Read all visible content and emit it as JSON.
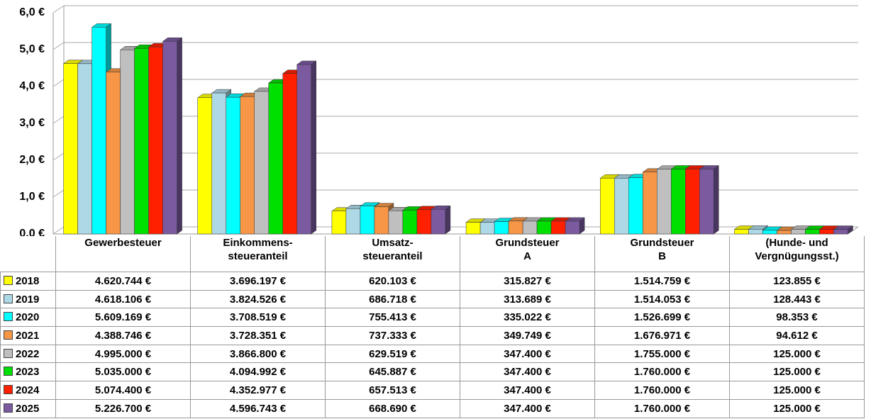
{
  "chart_data": {
    "type": "bar3d",
    "categories": [
      "Gewerbesteuer",
      "Einkommens-\nsteueranteil",
      "Umsatz-\nsteueranteil",
      "Grundsteuer\nA",
      "Grundsteuer\nB",
      "(Hunde- und\nVergnügungsst.)"
    ],
    "ylim": [
      0,
      6
    ],
    "yticks": [
      {
        "value": 0,
        "label": "0,0 €"
      },
      {
        "value": 1,
        "label": "1,0 €"
      },
      {
        "value": 2,
        "label": "2,0 €"
      },
      {
        "value": 3,
        "label": "3,0 €"
      },
      {
        "value": 4,
        "label": "4,0 €"
      },
      {
        "value": 5,
        "label": "5,0 €"
      },
      {
        "value": 6,
        "label": "6,0 €"
      }
    ],
    "grid": true,
    "series": [
      {
        "name": "2018",
        "color": "#ffff00",
        "values": [
          4.620744,
          3.696197,
          0.620103,
          0.315827,
          1.514759,
          0.123855
        ],
        "value_labels": [
          "4.620.744 €",
          "3.696.197 €",
          "620.103 €",
          "315.827 €",
          "1.514.759 €",
          "123.855 €"
        ]
      },
      {
        "name": "2019",
        "color": "#add8e6",
        "values": [
          4.618106,
          3.824526,
          0.686718,
          0.313689,
          1.514053,
          0.128443
        ],
        "value_labels": [
          "4.618.106 €",
          "3.824.526 €",
          "686.718 €",
          "313.689 €",
          "1.514.053 €",
          "128.443 €"
        ]
      },
      {
        "name": "2020",
        "color": "#00ffff",
        "values": [
          5.609169,
          3.708519,
          0.755413,
          0.335022,
          1.526699,
          0.098353
        ],
        "value_labels": [
          "5.609.169 €",
          "3.708.519 €",
          "755.413 €",
          "335.022 €",
          "1.526.699 €",
          "98.353 €"
        ]
      },
      {
        "name": "2021",
        "color": "#f79646",
        "values": [
          4.388746,
          3.728351,
          0.737333,
          0.349749,
          1.676971,
          0.094612
        ],
        "value_labels": [
          "4.388.746 €",
          "3.728.351 €",
          "737.333 €",
          "349.749 €",
          "1.676.971 €",
          "94.612 €"
        ]
      },
      {
        "name": "2022",
        "color": "#bfbfbf",
        "values": [
          4.995,
          3.8668,
          0.629519,
          0.3474,
          1.755,
          0.125
        ],
        "value_labels": [
          "4.995.000 €",
          "3.866.800 €",
          "629.519 €",
          "347.400 €",
          "1.755.000 €",
          "125.000 €"
        ]
      },
      {
        "name": "2023",
        "color": "#00e000",
        "values": [
          5.035,
          4.094992,
          0.645887,
          0.3474,
          1.76,
          0.125
        ],
        "value_labels": [
          "5.035.000 €",
          "4.094.992 €",
          "645.887 €",
          "347.400 €",
          "1.760.000 €",
          "125.000 €"
        ]
      },
      {
        "name": "2024",
        "color": "#ff2000",
        "values": [
          5.0744,
          4.352977,
          0.657513,
          0.3474,
          1.76,
          0.125
        ],
        "value_labels": [
          "5.074.400 €",
          "4.352.977 €",
          "657.513 €",
          "347.400 €",
          "1.760.000 €",
          "125.000 €"
        ]
      },
      {
        "name": "2025",
        "color": "#7b5aa0",
        "values": [
          5.2267,
          4.596743,
          0.66869,
          0.3474,
          1.76,
          0.125
        ],
        "value_labels": [
          "5.226.700 €",
          "4.596.743 €",
          "668.690 €",
          "347.400 €",
          "1.760.000 €",
          "125.000 €"
        ]
      }
    ]
  }
}
